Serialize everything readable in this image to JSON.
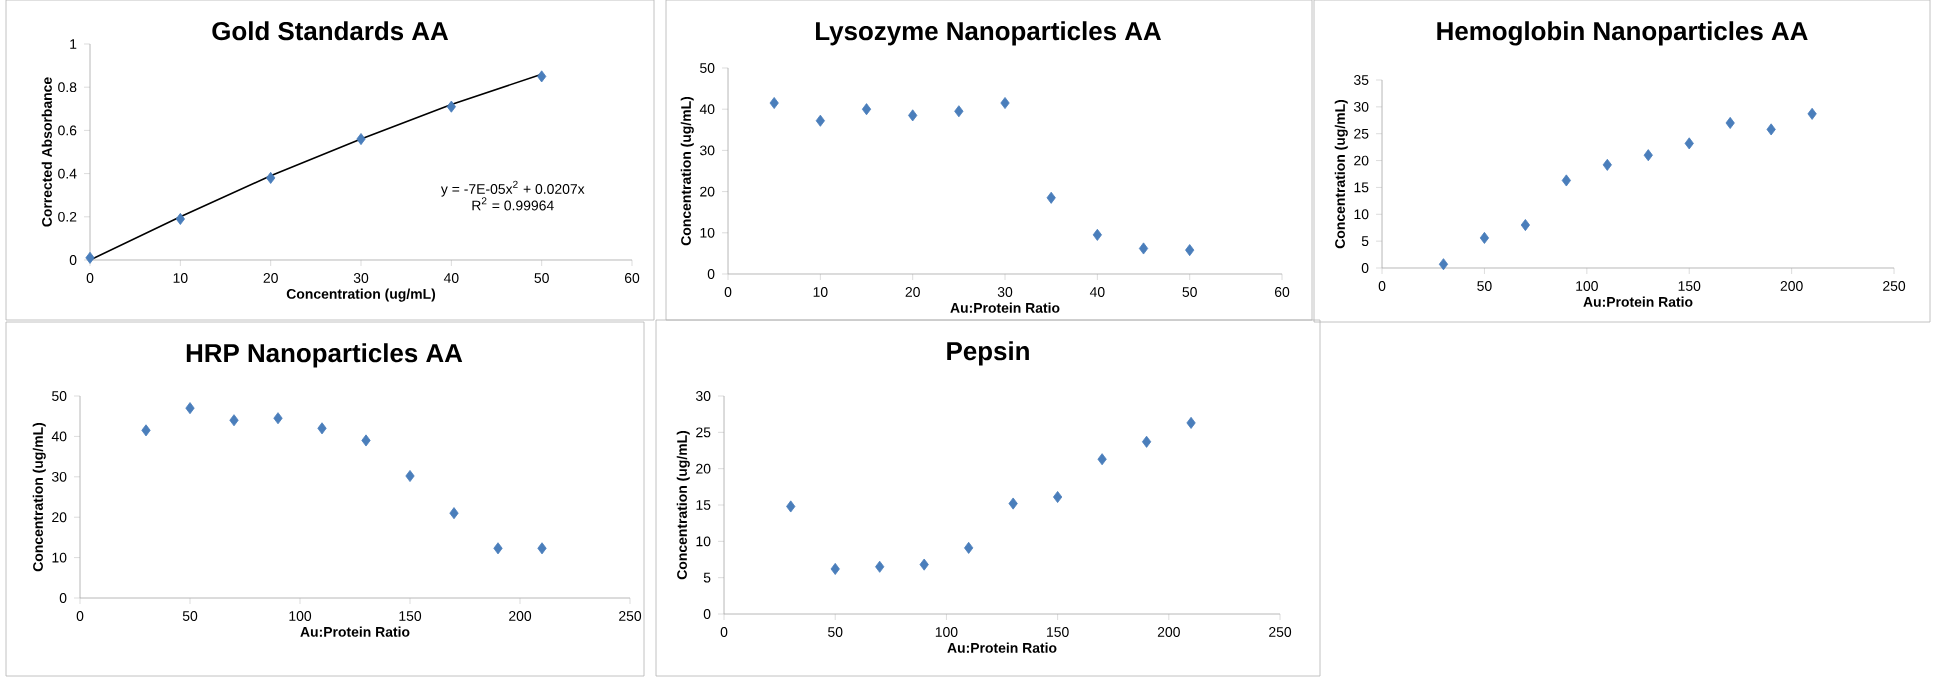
{
  "chart_data": [
    {
      "type": "scatter",
      "title": "Gold Standards AA",
      "xlabel": "Concentration (ug/mL)",
      "ylabel": "Corrected Absorbance",
      "marker": "diamond",
      "xlim": [
        0,
        60
      ],
      "xticks": [
        0,
        10,
        20,
        30,
        40,
        50,
        60
      ],
      "ylim": [
        0,
        1
      ],
      "yticks": [
        0,
        0.2,
        0.4,
        0.6,
        0.8,
        1
      ],
      "series": [
        {
          "type": "scatter",
          "color": "#4a7ebb",
          "x": [
            0,
            10,
            20,
            30,
            40,
            50
          ],
          "values": [
            0.01,
            0.19,
            0.38,
            0.56,
            0.71,
            0.85
          ]
        },
        {
          "type": "line",
          "color": "#000000",
          "marker": "none",
          "line_style": "solid",
          "x": [
            0,
            10,
            20,
            30,
            40,
            50
          ],
          "values": [
            0,
            0.2,
            0.39,
            0.56,
            0.72,
            0.86
          ]
        }
      ],
      "annotations": [
        "y = -7E-05x$^{2}$ + 0.0207x",
        "R$^{2}$ = 0.99964"
      ]
    },
    {
      "type": "scatter",
      "title": "Lysozyme Nanoparticles AA",
      "xlabel": "Au:Protein Ratio",
      "ylabel": "Concentration (ug/mL)",
      "marker": "diamond",
      "xlim": [
        0,
        60
      ],
      "xticks": [
        0,
        10,
        20,
        30,
        40,
        50,
        60
      ],
      "ylim": [
        0,
        50
      ],
      "yticks": [
        0,
        10,
        20,
        30,
        40,
        50
      ],
      "series": [
        {
          "color": "#4a7ebb",
          "x": [
            5,
            10,
            15,
            20,
            25,
            30,
            35,
            40,
            45,
            50
          ],
          "values": [
            41.5,
            37.2,
            40,
            38.5,
            39.5,
            41.5,
            18.5,
            9.5,
            6.2,
            5.8
          ]
        }
      ]
    },
    {
      "type": "scatter",
      "title": "Hemoglobin Nanoparticles AA",
      "xlabel": "Au:Protein Ratio",
      "ylabel": "Concentration (ug/mL)",
      "marker": "diamond",
      "xlim": [
        0,
        250
      ],
      "xticks": [
        0,
        50,
        100,
        150,
        200,
        250
      ],
      "ylim": [
        0,
        35
      ],
      "yticks": [
        0,
        5,
        10,
        15,
        20,
        25,
        30,
        35
      ],
      "series": [
        {
          "color": "#4a7ebb",
          "x": [
            30,
            50,
            70,
            90,
            110,
            130,
            150,
            170,
            190,
            210
          ],
          "values": [
            0.7,
            5.6,
            8,
            16.3,
            19.2,
            21,
            23.2,
            27,
            25.8,
            28.7
          ]
        }
      ]
    },
    {
      "type": "scatter",
      "title": "HRP Nanoparticles AA",
      "xlabel": "Au:Protein Ratio",
      "ylabel": "Concentration (ug/mL)",
      "marker": "diamond",
      "xlim": [
        0,
        250
      ],
      "xticks": [
        0,
        50,
        100,
        150,
        200,
        250
      ],
      "ylim": [
        0,
        50
      ],
      "yticks": [
        0,
        10,
        20,
        30,
        40,
        50
      ],
      "series": [
        {
          "color": "#4a7ebb",
          "x": [
            30,
            50,
            70,
            90,
            110,
            130,
            150,
            170,
            190,
            210
          ],
          "values": [
            41.5,
            47,
            44,
            44.5,
            42,
            39,
            30.2,
            21,
            12.3,
            12.3
          ]
        }
      ]
    },
    {
      "type": "scatter",
      "title": "Pepsin",
      "xlabel": "Au:Protein Ratio",
      "ylabel": "Concentration (ug/mL)",
      "marker": "diamond",
      "xlim": [
        0,
        250
      ],
      "xticks": [
        0,
        50,
        100,
        150,
        200,
        250
      ],
      "ylim": [
        0,
        30
      ],
      "yticks": [
        0,
        5,
        10,
        15,
        20,
        25,
        30
      ],
      "series": [
        {
          "color": "#4a7ebb",
          "x": [
            30,
            50,
            70,
            90,
            110,
            130,
            150,
            170,
            190,
            210
          ],
          "values": [
            14.8,
            6.2,
            6.5,
            6.8,
            9.1,
            15.2,
            16.1,
            21.3,
            23.7,
            26.3
          ]
        }
      ]
    }
  ]
}
